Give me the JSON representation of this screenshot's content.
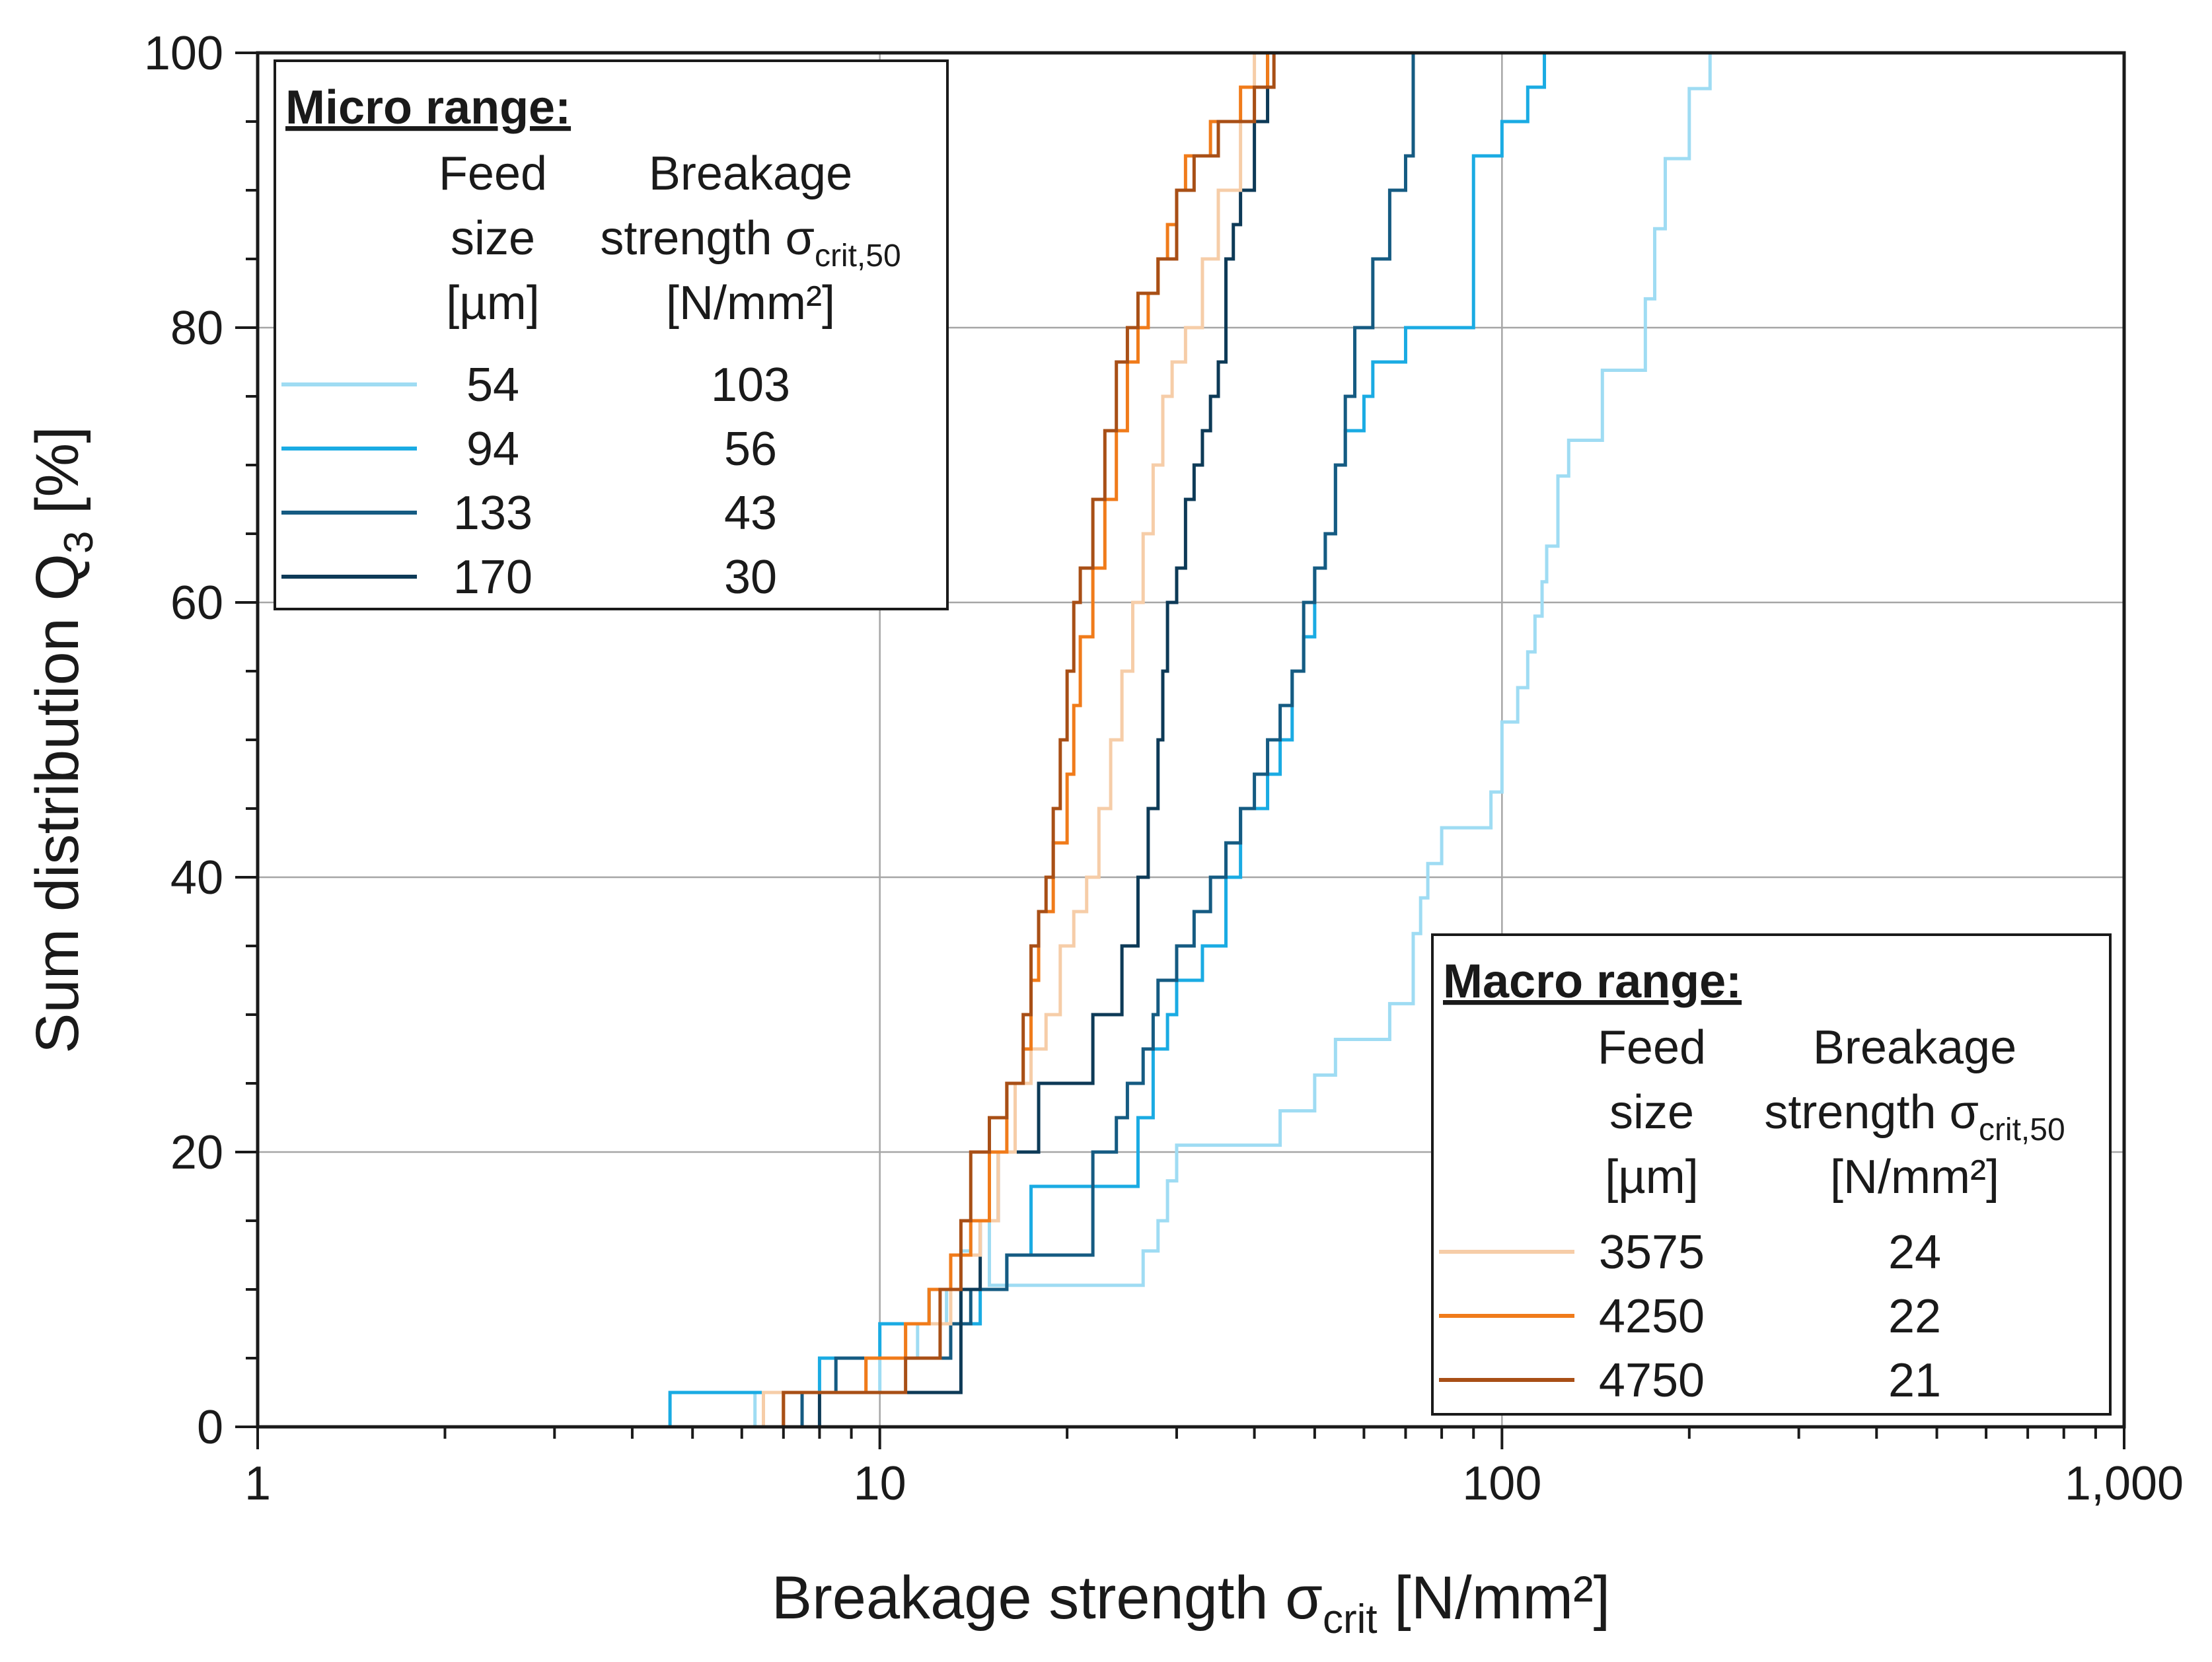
{
  "chart_data": {
    "type": "line",
    "subtype": "cumulative step distribution",
    "xscale": "log",
    "xlim": [
      1,
      1000
    ],
    "ylim": [
      0,
      100
    ],
    "grid": true,
    "xlabel": "Breakage strength σ",
    "xlabel_sub": "crit",
    "xlabel_unit": " [N/mm²]",
    "ylabel": "Sum distribution Q",
    "ylabel_sub": "3",
    "ylabel_unit": " [%]",
    "xticks": [
      1,
      10,
      100,
      1000
    ],
    "xtick_labels": [
      "1",
      "10",
      "100",
      "1,000"
    ],
    "yticks": [
      0,
      20,
      40,
      60,
      80,
      100
    ],
    "ytick_labels": [
      "0",
      "20",
      "40",
      "60",
      "80",
      "100"
    ],
    "legends": [
      {
        "title": "Micro range:",
        "placement": "top-left",
        "col1_header": [
          "Feed",
          "size",
          "[µm]"
        ],
        "col2_header": [
          "Breakage",
          "strength σ",
          "[N/mm²]"
        ],
        "col2_sub": "crit,50",
        "entries": [
          {
            "series": "54",
            "size": "54",
            "strength": "103"
          },
          {
            "series": "94",
            "size": "94",
            "strength": "56"
          },
          {
            "series": "133",
            "size": "133",
            "strength": "43"
          },
          {
            "series": "170",
            "size": "170",
            "strength": "30"
          }
        ]
      },
      {
        "title": "Macro range:",
        "placement": "bottom-right",
        "col1_header": [
          "Feed",
          "size",
          "[µm]"
        ],
        "col2_header": [
          "Breakage",
          "strength σ",
          "[N/mm²]"
        ],
        "col2_sub": "crit,50",
        "entries": [
          {
            "series": "3575",
            "size": "3575",
            "strength": "24"
          },
          {
            "series": "4250",
            "size": "4250",
            "strength": "22"
          },
          {
            "series": "4750",
            "size": "4750",
            "strength": "21"
          }
        ]
      }
    ],
    "series": [
      {
        "name": "54",
        "range": "micro",
        "color": "#9fdcf3",
        "x": [
          1,
          6.3,
          10,
          11.5,
          12.8,
          13.5,
          14,
          15,
          22.5,
          26.5,
          27,
          28,
          29,
          30,
          31,
          36,
          44,
          50,
          54,
          60,
          66,
          72,
          74,
          76,
          80,
          84,
          96,
          100,
          106,
          110,
          113,
          116,
          118,
          123,
          128,
          133,
          145,
          166,
          170,
          176,
          183,
          200,
          216
        ],
        "y": [
          0,
          2.5,
          5,
          7.5,
          10,
          12.8,
          15,
          10.3,
          10.3,
          12.8,
          12.8,
          15,
          17.9,
          20.5,
          20.5,
          20.5,
          23,
          25.6,
          28.2,
          28.2,
          30.8,
          35.9,
          38.5,
          41,
          43.6,
          43.6,
          46.2,
          51.3,
          53.8,
          56.4,
          59,
          61.5,
          64.1,
          69.2,
          71.8,
          71.8,
          76.9,
          76.9,
          82.1,
          87.2,
          92.3,
          97.4,
          100
        ]
      },
      {
        "name": "94",
        "range": "micro",
        "color": "#1aabe3",
        "x": [
          1,
          4.6,
          5,
          8,
          10,
          12,
          13.5,
          14.5,
          16,
          17.5,
          20,
          22,
          26,
          27.5,
          29,
          30,
          33,
          36,
          38,
          40,
          42,
          44,
          46,
          48,
          50,
          52,
          54,
          56,
          58,
          60,
          62,
          64,
          70,
          80,
          90,
          100,
          110,
          117
        ],
        "y": [
          0,
          2.5,
          2.5,
          5,
          7.5,
          10,
          7.5,
          10,
          12.5,
          17.5,
          17.5,
          17.5,
          22.5,
          27.5,
          30,
          32.5,
          35,
          40,
          45,
          45,
          47.5,
          50,
          55,
          57.5,
          62.5,
          65,
          70,
          72.5,
          72.5,
          75,
          77.5,
          77.5,
          80,
          80,
          92.5,
          95,
          97.5,
          100
        ]
      },
      {
        "name": "133",
        "range": "micro",
        "color": "#155b82",
        "x": [
          1,
          7.5,
          8.5,
          10,
          13,
          14,
          16,
          22,
          24,
          25,
          26.5,
          27.5,
          28,
          30,
          32,
          34,
          36,
          38,
          40,
          42,
          44,
          46,
          48,
          50,
          52,
          54,
          56,
          58,
          62,
          66,
          70,
          72
        ],
        "y": [
          0,
          2.5,
          5,
          5,
          7.5,
          10,
          12.5,
          20,
          22.5,
          25,
          27.5,
          30,
          32.5,
          35,
          37.5,
          40,
          42.5,
          45,
          47.5,
          50,
          52.5,
          55,
          60,
          62.5,
          65,
          70,
          75,
          80,
          85,
          90,
          92.5,
          100
        ]
      },
      {
        "name": "170",
        "range": "micro",
        "color": "#0d3a57",
        "x": [
          1,
          8,
          11.5,
          13.5,
          14.5,
          15.5,
          16.5,
          18,
          19.5,
          20.5,
          22,
          24.5,
          26,
          27,
          28,
          28.5,
          29,
          30,
          31,
          32,
          33,
          34,
          35,
          36,
          37,
          38,
          40,
          42
        ],
        "y": [
          0,
          2.5,
          2.5,
          10,
          15,
          20,
          20,
          25,
          25,
          25,
          30,
          35,
          40,
          45,
          50,
          55,
          60,
          62.5,
          67.5,
          70,
          72.5,
          75,
          77.5,
          85,
          87.5,
          90,
          95,
          100
        ]
      },
      {
        "name": "3575",
        "range": "macro",
        "color": "#f6cda8",
        "x": [
          1,
          6.5,
          9.5,
          11,
          13,
          14.5,
          15.5,
          16.5,
          17.5,
          18.5,
          19.5,
          20.5,
          21.5,
          22.5,
          23.5,
          24.5,
          25.5,
          26.5,
          27.5,
          28.5,
          29.5,
          31,
          33,
          35,
          38,
          40
        ],
        "y": [
          0,
          2.5,
          5,
          7.5,
          12.5,
          15,
          20,
          25,
          27.5,
          30,
          35,
          37.5,
          40,
          45,
          50,
          55,
          60,
          65,
          70,
          75,
          77.5,
          80,
          85,
          90,
          95,
          100
        ]
      },
      {
        "name": "4250",
        "range": "macro",
        "color": "#f07b1a",
        "x": [
          1,
          7,
          9.5,
          11,
          12,
          13,
          14,
          15,
          16,
          17,
          17.5,
          18,
          19,
          20,
          20.5,
          21,
          22,
          23,
          24,
          25,
          26,
          27,
          28,
          29,
          30,
          31,
          34,
          38,
          42
        ],
        "y": [
          0,
          2.5,
          5,
          7.5,
          10,
          12.5,
          15,
          20,
          25,
          27.5,
          32.5,
          37.5,
          42.5,
          47.5,
          52.5,
          57.5,
          62.5,
          67.5,
          72.5,
          77.5,
          80,
          82.5,
          85,
          87.5,
          90,
          92.5,
          95,
          97.5,
          100
        ]
      },
      {
        "name": "4750",
        "range": "macro",
        "color": "#a84f16",
        "x": [
          1,
          7,
          9,
          11,
          12.5,
          13.5,
          14,
          15,
          16,
          17,
          17.5,
          18,
          18.5,
          19,
          19.5,
          20,
          20.5,
          21,
          22,
          23,
          24,
          25,
          26,
          28,
          30,
          32,
          35,
          40,
          43
        ],
        "y": [
          0,
          2.5,
          2.5,
          5,
          10,
          15,
          20,
          22.5,
          25,
          30,
          35,
          37.5,
          40,
          45,
          50,
          55,
          60,
          62.5,
          67.5,
          72.5,
          77.5,
          80,
          82.5,
          85,
          90,
          92.5,
          95,
          97.5,
          100
        ]
      }
    ]
  }
}
